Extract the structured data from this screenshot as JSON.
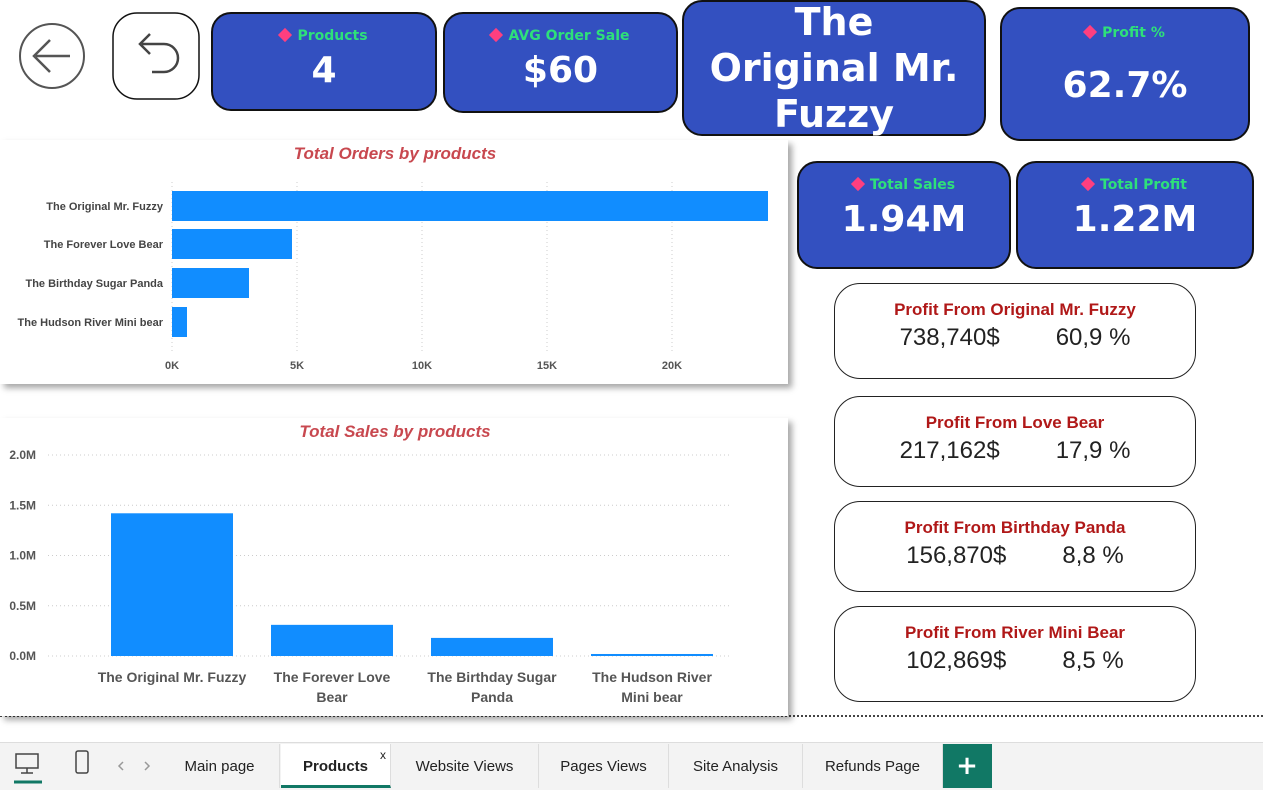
{
  "kpis": [
    {
      "label": "Products",
      "value": "4"
    },
    {
      "label": "AVG Order Sale",
      "value": "$60"
    },
    {
      "label": "Profit %",
      "value": "62.7%"
    },
    {
      "label": "Total Sales",
      "value": "1.94M"
    },
    {
      "label": "Total Profit",
      "value": "1.22M"
    }
  ],
  "product_title": "The Original Mr. Fuzzy",
  "chart_data": [
    {
      "type": "bar",
      "horizontal": true,
      "title": "Total Orders by products",
      "categories": [
        "The Original Mr. Fuzzy",
        "The Forever Love Bear",
        "The Birthday Sugar Panda",
        "The Hudson River Mini bear"
      ],
      "values": [
        23840,
        4800,
        3080,
        600
      ],
      "color": "#118dff",
      "xlim": [
        0,
        24000
      ],
      "xticks": [
        {
          "value": 0,
          "label": "0K"
        },
        {
          "value": 5000,
          "label": "5K"
        },
        {
          "value": 10000,
          "label": "10K"
        },
        {
          "value": 15000,
          "label": "15K"
        },
        {
          "value": 20000,
          "label": "20K"
        }
      ],
      "grid": true
    },
    {
      "type": "bar",
      "horizontal": false,
      "title": "Total Sales by products",
      "categories": [
        "The Original Mr. Fuzzy",
        "The Forever Love Bear",
        "The Birthday Sugar Panda",
        "The Hudson River Mini bear"
      ],
      "values": [
        1420000,
        310000,
        180000,
        20000
      ],
      "color": "#118dff",
      "ylim": [
        0,
        2000000
      ],
      "yticks": [
        {
          "value": 0,
          "label": "0.0M"
        },
        {
          "value": 500000,
          "label": "0.5M"
        },
        {
          "value": 1000000,
          "label": "1.0M"
        },
        {
          "value": 1500000,
          "label": "1.5M"
        },
        {
          "value": 2000000,
          "label": "2.0M"
        }
      ],
      "grid": true
    }
  ],
  "profit_cards": [
    {
      "title": "Profit From Original Mr. Fuzzy",
      "amount": "738,740$",
      "percent": "60,9 %"
    },
    {
      "title": "Profit From Love Bear",
      "amount": "217,162$",
      "percent": "17,9 %"
    },
    {
      "title": "Profit From Birthday Panda",
      "amount": "156,870$",
      "percent": "8,8 %"
    },
    {
      "title": "Profit From River Mini Bear",
      "amount": "102,869$",
      "percent": "8,5 %"
    }
  ],
  "tabs": {
    "pages": [
      "Main page",
      "Products",
      "Website Views",
      "Pages Views",
      "Site Analysis",
      "Refunds Page"
    ],
    "active_close": "x",
    "add": "+"
  }
}
